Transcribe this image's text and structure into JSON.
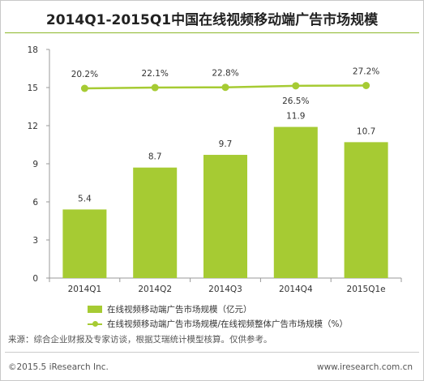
{
  "chart_data": {
    "type": "bar",
    "title": "2014Q1-2015Q1中国在线视频移动端广告市场规模",
    "categories": [
      "2014Q1",
      "2014Q2",
      "2014Q3",
      "2014Q4",
      "2015Q1e"
    ],
    "ylim": [
      0,
      18
    ],
    "yticks": [
      "0",
      "3",
      "6",
      "9",
      "12",
      "15",
      "18"
    ],
    "series": [
      {
        "name": "在线视频移动端广告市场规模（亿元）",
        "type": "bar",
        "color": "#a6cb33",
        "values": [
          5.4,
          8.7,
          9.7,
          11.9,
          10.7
        ],
        "labels": [
          "5.4",
          "8.7",
          "9.7",
          "11.9",
          "10.7"
        ]
      },
      {
        "name": "在线视频移动端广告市场规模/在线视频整体广告市场规模（%）",
        "type": "line",
        "color": "#a6cb33",
        "values": [
          20.2,
          22.1,
          22.8,
          26.5,
          27.2
        ],
        "labels": [
          "20.2%",
          "22.1%",
          "22.8%",
          "26.5%",
          "27.2%"
        ]
      }
    ],
    "legend_position": "bottom"
  },
  "legend": {
    "bar_label": "在线视频移动端广告市场规模（亿元）",
    "line_label": "在线视频移动端广告市场规模/在线视频整体广告市场规模（%）"
  },
  "source": "来源：综合企业财报及专家访谈，根据艾瑞统计模型核算。仅供参考。",
  "copyright": "©2015.5 iResearch Inc.",
  "website": "www.iresearch.com.cn"
}
